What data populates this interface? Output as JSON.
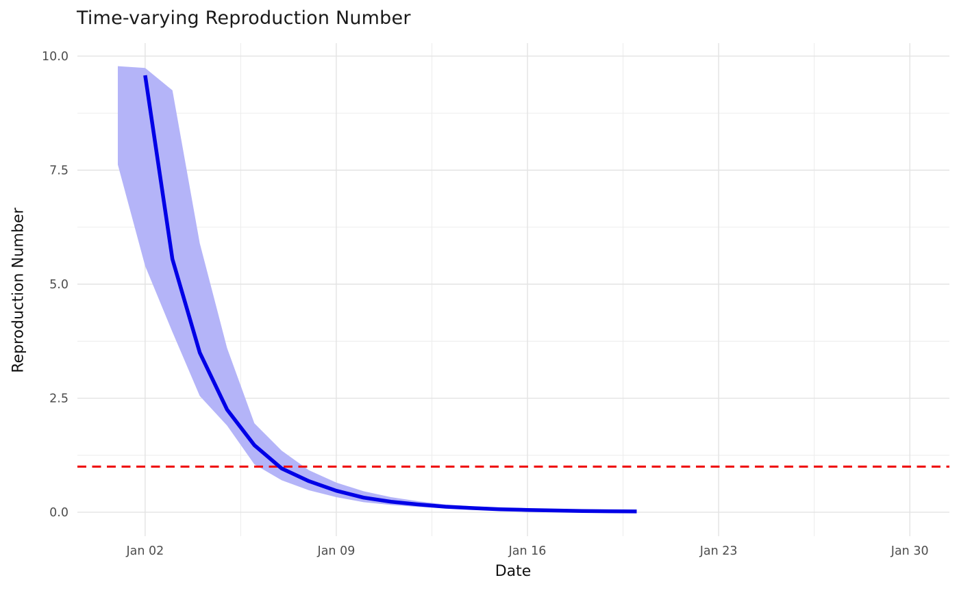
{
  "chart_data": {
    "type": "line",
    "title": "Time-varying Reproduction Number",
    "xlabel": "Date",
    "ylabel": "Reproduction Number",
    "grid": true,
    "legend": "none",
    "x_dates": [
      "Jan 01",
      "Jan 02",
      "Jan 03",
      "Jan 04",
      "Jan 05",
      "Jan 06",
      "Jan 07",
      "Jan 08",
      "Jan 09",
      "Jan 10",
      "Jan 11",
      "Jan 12",
      "Jan 13",
      "Jan 14",
      "Jan 15",
      "Jan 16",
      "Jan 17",
      "Jan 18",
      "Jan 19",
      "Jan 20"
    ],
    "days": [
      1,
      2,
      3,
      4,
      5,
      6,
      7,
      8,
      9,
      10,
      11,
      12,
      13,
      14,
      15,
      16,
      17,
      18,
      19,
      20
    ],
    "series": [
      {
        "name": "mean-rt-line",
        "type": "line",
        "values": [
          null,
          9.58,
          5.55,
          3.5,
          2.25,
          1.47,
          0.96,
          0.68,
          0.47,
          0.32,
          0.23,
          0.17,
          0.12,
          0.09,
          0.065,
          0.05,
          0.038,
          0.028,
          0.022,
          0.017
        ]
      },
      {
        "name": "credible-interval-ribbon",
        "type": "ribbon",
        "lower": [
          7.62,
          5.4,
          3.95,
          2.55,
          1.9,
          1.05,
          0.7,
          0.48,
          0.33,
          0.22,
          0.16,
          0.115,
          0.085,
          0.062,
          0.046,
          0.034,
          0.026,
          0.019,
          0.014,
          0.01
        ],
        "upper": [
          9.78,
          9.74,
          9.25,
          5.9,
          3.6,
          1.95,
          1.35,
          0.92,
          0.65,
          0.46,
          0.33,
          0.24,
          0.17,
          0.13,
          0.1,
          0.075,
          0.058,
          0.045,
          0.035,
          0.028
        ]
      }
    ],
    "threshold_line": {
      "value": 1.0,
      "style": "dashed"
    },
    "x_ticks": [
      {
        "day": 2,
        "label": "Jan 02"
      },
      {
        "day": 9,
        "label": "Jan 09"
      },
      {
        "day": 16,
        "label": "Jan 16"
      },
      {
        "day": 23,
        "label": "Jan 23"
      },
      {
        "day": 30,
        "label": "Jan 30"
      }
    ],
    "x_minor_days": [
      5.5,
      12.5,
      19.5,
      26.5
    ],
    "y_ticks": [
      {
        "value": 0.0,
        "label": "0.0"
      },
      {
        "value": 2.5,
        "label": "2.5"
      },
      {
        "value": 5.0,
        "label": "5.0"
      },
      {
        "value": 7.5,
        "label": "7.5"
      },
      {
        "value": 10.0,
        "label": "10.0"
      }
    ],
    "y_minor_values": [
      1.25,
      3.75,
      6.25,
      8.75
    ],
    "xlim_days": [
      -0.48,
      31.45
    ],
    "ylim": [
      -0.525,
      10.285
    ],
    "colors": {
      "line": "#0000E6",
      "ribbon": "#B4B4F8",
      "threshold": "#EE1111",
      "grid_major": "#E3E3E3",
      "grid_minor": "#EDEDED",
      "tick_text": "#4D4D4D",
      "title_text": "#1A1A1A",
      "background": "#FFFFFF"
    }
  }
}
